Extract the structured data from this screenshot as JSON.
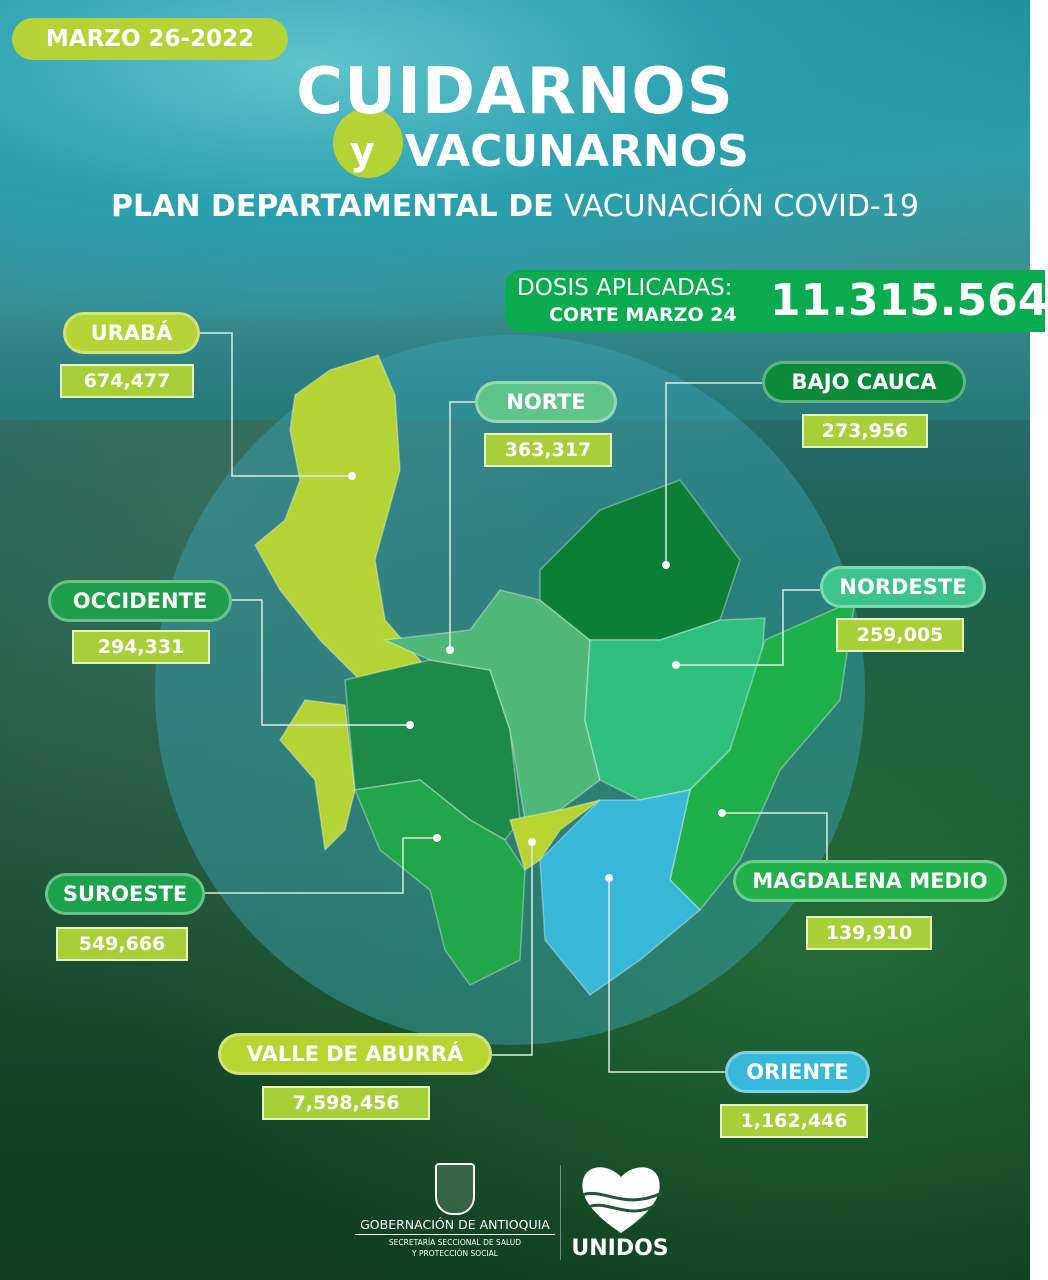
{
  "date": "MARZO 26-2022",
  "title": {
    "line1": "CUIDARNOS",
    "y": "y",
    "line2": "VACUNARNOS",
    "subtitle_bold": "PLAN DEPARTAMENTAL DE",
    "subtitle_light": "VACUNACIÓN COVID-19"
  },
  "total": {
    "label": "DOSIS APLICADAS:",
    "cutoff": "CORTE MARZO 24",
    "value": "11.315.564"
  },
  "regions": [
    {
      "name": "URABÁ",
      "value": "674,477",
      "color": "#b5d334"
    },
    {
      "name": "NORTE",
      "value": "363,317",
      "color": "#5fc48a"
    },
    {
      "name": "BAJO CAUCA",
      "value": "273,956",
      "color": "#0b8a3a"
    },
    {
      "name": "OCCIDENTE",
      "value": "294,331",
      "color": "#1e9e4a"
    },
    {
      "name": "NORDESTE",
      "value": "259,005",
      "color": "#3cc48a"
    },
    {
      "name": "SUROESTE",
      "value": "549,666",
      "color": "#1aa34a"
    },
    {
      "name": "MAGDALENA MEDIO",
      "value": "139,910",
      "color": "#22b04b"
    },
    {
      "name": "VALLE  DE ABURRÁ",
      "value": "7,598,456",
      "color": "#b8d430"
    },
    {
      "name": "ORIENTE",
      "value": "1,162,446",
      "color": "#37b8d8"
    }
  ],
  "footer": {
    "gov": "GOBERNACIÓN DE ANTIOQUIA",
    "secretaria": "SECRETARÍA SECCIONAL DE SALUD",
    "proteccion": "Y PROTECCIÓN SOCIAL",
    "unidos": "UNIDOS"
  }
}
